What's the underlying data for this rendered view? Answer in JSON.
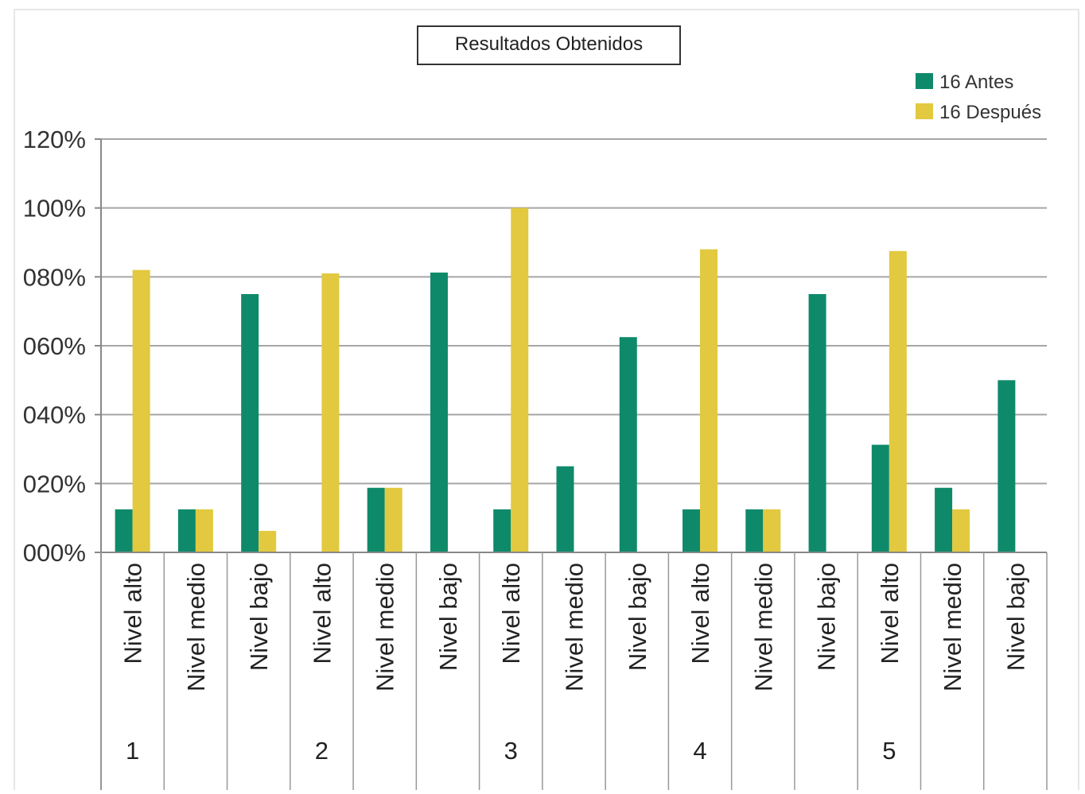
{
  "chart_data": {
    "type": "bar",
    "title": "Resultados Obtenidos",
    "xlabel": "",
    "ylabel": "",
    "ylim": [
      0,
      1.2
    ],
    "y_ticks": [
      "000%",
      "020%",
      "040%",
      "060%",
      "080%",
      "100%",
      "120%"
    ],
    "grid": true,
    "legend_position": "top-right",
    "categories": [
      "Nivel alto",
      "Nivel medio",
      "Nivel bajo",
      "Nivel alto",
      "Nivel medio",
      "Nivel bajo",
      "Nivel alto",
      "Nivel medio",
      "Nivel bajo",
      "Nivel alto",
      "Nivel medio",
      "Nivel bajo",
      "Nivel alto",
      "Nivel medio",
      "Nivel bajo"
    ],
    "groups": [
      {
        "label": "1",
        "start": 0,
        "end": 2
      },
      {
        "label": "2",
        "start": 3,
        "end": 5
      },
      {
        "label": "3",
        "start": 6,
        "end": 8
      },
      {
        "label": "4",
        "start": 9,
        "end": 11
      },
      {
        "label": "5",
        "start": 12,
        "end": 14
      }
    ],
    "series": [
      {
        "name": "16 Antes",
        "color": "#0e8a6a",
        "values": [
          0.125,
          0.125,
          0.75,
          0.0,
          0.1875,
          0.8125,
          0.125,
          0.25,
          0.625,
          0.125,
          0.125,
          0.75,
          0.3125,
          0.1875,
          0.5
        ]
      },
      {
        "name": "16 Después",
        "color": "#e2c93f",
        "values": [
          0.82,
          0.125,
          0.0625,
          0.81,
          0.1875,
          0.0,
          1.0,
          0.0,
          0.0,
          0.88,
          0.125,
          0.0,
          0.875,
          0.125,
          0.0
        ]
      }
    ]
  }
}
